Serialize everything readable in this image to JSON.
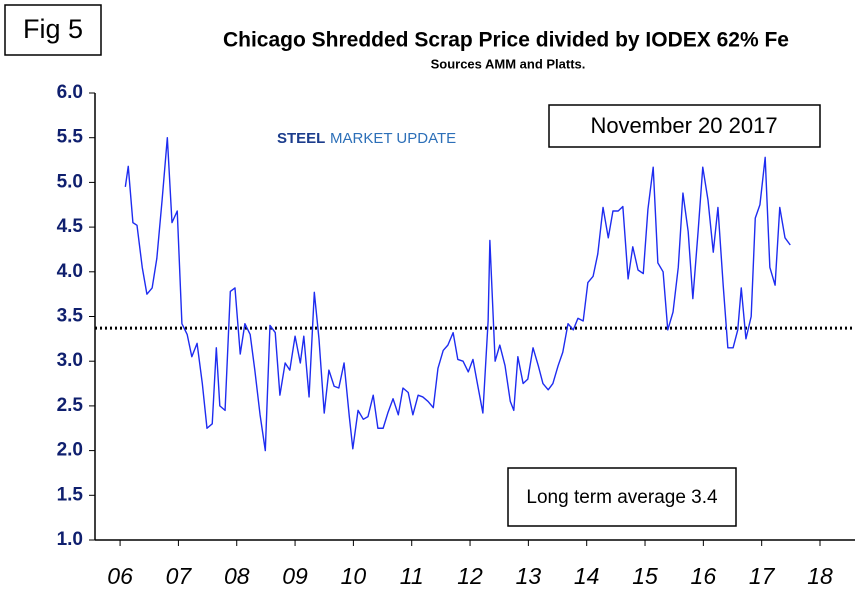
{
  "chart_data": {
    "type": "line",
    "figure_label": "Fig 5",
    "title": "Chicago Shredded Scrap Price divided by IODEX 62% Fe",
    "subtitle": "Sources AMM and Platts.",
    "logo": [
      "STEEL",
      "MARKET UPDATE"
    ],
    "date_label": "November 20 2017",
    "average_label": "Long term average 3.4",
    "average_line": 3.37,
    "color": "#1e2cf0",
    "xlim": [
      5.57,
      18.6
    ],
    "xticks": [
      {
        "value": 6,
        "label": "06"
      },
      {
        "value": 7,
        "label": "07"
      },
      {
        "value": 8,
        "label": "08"
      },
      {
        "value": 9,
        "label": "09"
      },
      10,
      11,
      12,
      13,
      14,
      15,
      16,
      17,
      18
    ],
    "ylim": [
      1.0,
      6.0
    ],
    "yticks": [
      {
        "value": 1,
        "label": "1.0"
      },
      1.5,
      {
        "value": 2,
        "label": "2.0"
      },
      2.5,
      {
        "value": 3,
        "label": "3.0"
      },
      3.5,
      {
        "value": 4,
        "label": "4.0"
      },
      4.5,
      {
        "value": 5,
        "label": "5.0"
      },
      5.5,
      {
        "value": 6,
        "label": "6.0"
      }
    ],
    "x": [
      6.09,
      6.14,
      6.22,
      6.29,
      6.38,
      6.46,
      6.55,
      6.63,
      6.72,
      6.81,
      6.89,
      6.98,
      7.06,
      7.15,
      7.23,
      7.32,
      7.41,
      7.49,
      7.58,
      7.65,
      7.71,
      7.8,
      7.89,
      7.97,
      8.06,
      8.14,
      8.23,
      8.31,
      8.4,
      8.49,
      8.57,
      8.66,
      8.74,
      8.83,
      8.91,
      9.0,
      9.09,
      9.15,
      9.24,
      9.33,
      9.41,
      9.5,
      9.58,
      9.67,
      9.75,
      9.84,
      9.93,
      9.99,
      10.08,
      10.17,
      10.25,
      10.34,
      10.42,
      10.51,
      10.59,
      10.68,
      10.77,
      10.85,
      10.94,
      11.02,
      11.11,
      11.19,
      11.28,
      11.37,
      11.45,
      11.54,
      11.62,
      11.71,
      11.79,
      11.88,
      11.97,
      12.05,
      12.14,
      12.22,
      12.31,
      12.34,
      12.43,
      12.51,
      12.6,
      12.69,
      12.75,
      12.82,
      12.91,
      12.99,
      13.08,
      13.17,
      13.25,
      13.34,
      13.42,
      13.51,
      13.59,
      13.68,
      13.77,
      13.85,
      13.94,
      14.02,
      14.11,
      14.19,
      14.28,
      14.37,
      14.45,
      14.54,
      14.62,
      14.71,
      14.79,
      14.88,
      14.97,
      15.05,
      15.14,
      15.22,
      15.31,
      15.39,
      15.48,
      15.57,
      15.65,
      15.74,
      15.82,
      15.91,
      15.99,
      16.08,
      16.17,
      16.25,
      16.34,
      16.42,
      16.51,
      16.59,
      16.65,
      16.73,
      16.82,
      16.89,
      16.97,
      17.06,
      17.14,
      17.23,
      17.31,
      17.4,
      17.49
    ],
    "values": [
      4.95,
      5.18,
      4.55,
      4.52,
      4.05,
      3.75,
      3.82,
      4.15,
      4.8,
      5.5,
      4.55,
      4.68,
      3.42,
      3.3,
      3.05,
      3.2,
      2.75,
      2.25,
      2.3,
      3.15,
      2.5,
      2.45,
      3.78,
      3.82,
      3.08,
      3.42,
      3.3,
      2.9,
      2.4,
      2.0,
      3.4,
      3.32,
      2.62,
      2.98,
      2.9,
      3.28,
      2.98,
      3.28,
      2.6,
      3.77,
      3.25,
      2.42,
      2.9,
      2.72,
      2.7,
      2.98,
      2.38,
      2.02,
      2.45,
      2.35,
      2.38,
      2.62,
      2.25,
      2.25,
      2.42,
      2.58,
      2.4,
      2.7,
      2.65,
      2.4,
      2.62,
      2.6,
      2.55,
      2.48,
      2.92,
      3.12,
      3.18,
      3.32,
      3.02,
      3.0,
      2.88,
      3.02,
      2.7,
      2.42,
      3.45,
      4.35,
      3.0,
      3.18,
      2.95,
      2.55,
      2.45,
      3.05,
      2.75,
      2.8,
      3.15,
      2.95,
      2.75,
      2.68,
      2.75,
      2.95,
      3.1,
      3.42,
      3.35,
      3.48,
      3.45,
      3.88,
      3.95,
      4.2,
      4.72,
      4.38,
      4.68,
      4.68,
      4.73,
      3.92,
      4.28,
      4.02,
      3.98,
      4.7,
      5.17,
      4.1,
      4.0,
      3.35,
      3.55,
      4.05,
      4.88,
      4.45,
      3.7,
      4.45,
      5.17,
      4.8,
      4.22,
      4.72,
      3.85,
      3.15,
      3.15,
      3.35,
      3.82,
      3.25,
      3.5,
      4.6,
      4.75,
      5.28,
      4.05,
      3.85,
      4.72,
      4.38,
      4.3
    ]
  }
}
